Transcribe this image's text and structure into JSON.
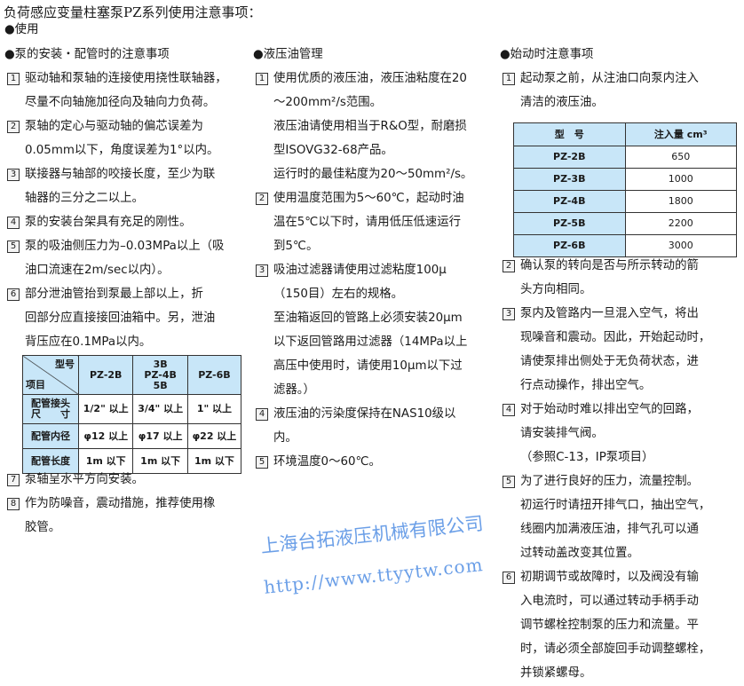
{
  "title": "负荷感应变量柱塞泵PZ系列使用注意事项：",
  "section": "●使用",
  "columns": [
    {
      "heading": "●泵的安装・配管时的注意事项",
      "items": [
        {
          "n": "1",
          "lines": [
            "驱动轴和泵轴的连接使用挠性联轴器，",
            "尽量不向轴施加径向及轴向力负荷。"
          ]
        },
        {
          "n": "2",
          "lines": [
            "泵轴的定心与驱动轴的偏芯误差为",
            "0.05mm以下，角度误差为1°以内。"
          ]
        },
        {
          "n": "3",
          "lines": [
            "联接器与轴部的咬接长度，至少为联",
            "轴器的三分之二以上。"
          ]
        },
        {
          "n": "4",
          "lines": [
            "泵的安装台架具有充足的刚性。"
          ]
        },
        {
          "n": "5",
          "lines": [
            "泵的吸油侧压力为–0.03MPa以上（吸",
            "油口流速在2m/sec以内）。"
          ]
        },
        {
          "n": "6",
          "lines": [
            "部分泄油管抬到泵最上部以上，折",
            "回部分应直接接回油箱中。另，泄油",
            "背压应在0.1MPa以内。"
          ]
        },
        {
          "n": "7",
          "lines": [
            "泵轴呈水平方向安装。"
          ]
        },
        {
          "n": "8",
          "lines": [
            "作为防噪音，震动措施，推荐使用橡",
            "胶管。"
          ]
        }
      ]
    },
    {
      "heading": "●液压油管理",
      "items": [
        {
          "n": "1",
          "lines": [
            "使用优质的液压油，液压油粘度在20",
            "～200mm²/s范围。",
            "液压油请使用相当于R&O型，耐磨损",
            "型ISOVG32-68产品。",
            "运行时的最佳粘度为20～50mm²/s。"
          ]
        },
        {
          "n": "2",
          "lines": [
            "使用温度范围为5～60℃，起动时油",
            "温在5℃以下时，请用低压低速运行",
            "到5℃。"
          ]
        },
        {
          "n": "3",
          "lines": [
            "吸油过滤器请使用过滤粘度100μ",
            "（150目）左右的规格。",
            "至油箱返回的管路上必须安装20μm",
            "以下返回管路用过滤器（14MPa以上",
            "高压中使用时，请使用10μm以下过",
            "滤器。）"
          ]
        },
        {
          "n": "4",
          "lines": [
            "液压油的污染度保持在NAS10级以",
            "内。"
          ]
        },
        {
          "n": "5",
          "lines": [
            "环境温度0～60℃。"
          ]
        }
      ]
    },
    {
      "heading": "●始动时注意事项",
      "items": [
        {
          "n": "1",
          "lines": [
            "起动泵之前，从注油口向泵内注入",
            "清洁的液压油。"
          ]
        },
        {
          "n": "2",
          "lines": [
            "确认泵的转向是否与所示转动的箭",
            "头方向相同。"
          ]
        },
        {
          "n": "3",
          "lines": [
            "泵内及管路内一旦混入空气，将出",
            "现噪音和震动。因此，开始起动时，",
            "请使泵排出侧处于无负荷状态，进",
            "行点动操作，排出空气。"
          ]
        },
        {
          "n": "4",
          "lines": [
            "对于始动时难以排出空气的回路，",
            "请安装排气阀。",
            "（参照C-13，IP泵项目）"
          ]
        },
        {
          "n": "5",
          "lines": [
            "为了进行良好的压力，流量控制。",
            "初运行时请扭开排气口，抽出空气，",
            "线圈内加满液压油，排气孔可以通",
            "过转动盖改变其位置。"
          ]
        },
        {
          "n": "6",
          "lines": [
            "初期调节或故障时，以及阀没有输",
            "入电流时，可以通过转动手柄手动",
            "调节螺栓控制泵的压力和流量。平",
            "时，请必须全部旋回手动调整螺栓，",
            "并锁紧螺母。"
          ]
        }
      ]
    }
  ],
  "pipe_table": {
    "corner_top": "型号",
    "corner_bottom": "项目",
    "headers": [
      "PZ-2B",
      "3B\nPZ-4B\n5B",
      "PZ-6B"
    ],
    "rows": [
      {
        "label": "配管接头\n尺　　寸",
        "cells": [
          "1/2\" 以上",
          "3/4\" 以上",
          "1\" 以上"
        ]
      },
      {
        "label": "配管内径",
        "cells": [
          "φ12 以上",
          "φ17 以上",
          "φ22 以上"
        ]
      },
      {
        "label": "配管长度",
        "cells": [
          "1m 以下",
          "1m 以下",
          "1m 以下"
        ]
      }
    ]
  },
  "fill_table": {
    "headers": [
      "型　号",
      "注入量 cm³"
    ],
    "rows": [
      [
        "PZ-2B",
        "650"
      ],
      [
        "PZ-3B",
        "1000"
      ],
      [
        "PZ-4B",
        "1800"
      ],
      [
        "PZ-5B",
        "2200"
      ],
      [
        "PZ-6B",
        "3000"
      ]
    ]
  },
  "watermark": {
    "company": "上海台拓液压机械有限公司",
    "url": "http://www.ttyytw.com"
  },
  "colors": {
    "table_header": "#c8e6f8",
    "watermark": "#3a7fe0"
  }
}
